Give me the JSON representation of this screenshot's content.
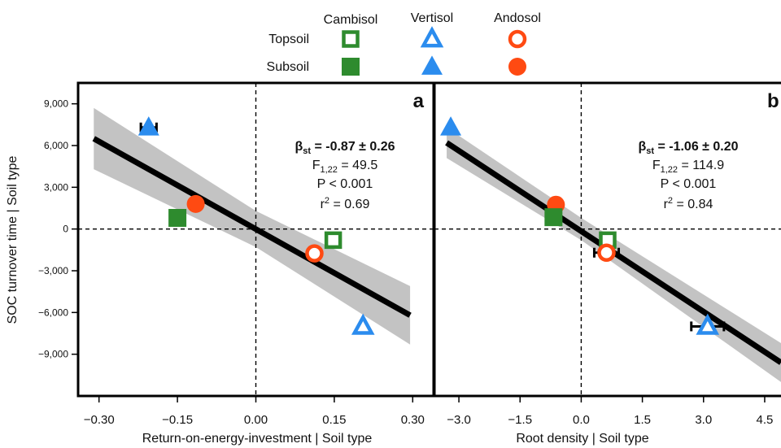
{
  "legend": {
    "columns": [
      {
        "label": "Cambisol",
        "color": "#2e8b2e"
      },
      {
        "label": "Vertisol",
        "color": "#2b8cee"
      },
      {
        "label": "Andosol",
        "color": "#ff4a12"
      }
    ],
    "rows": [
      {
        "label": "Topsoil",
        "fill": "open"
      },
      {
        "label": "Subsoil",
        "fill": "filled"
      }
    ],
    "shapes": {
      "Cambisol": "square",
      "Vertisol": "triangle",
      "Andosol": "circle"
    }
  },
  "chart_data": [
    {
      "type": "scatter",
      "panel_label": "a",
      "xlabel": "Return-on-energy-investment | Soil type",
      "ylabel": "SOC turnover time | Soil type",
      "xlim": [
        -0.34,
        0.34
      ],
      "ylim": [
        -12000,
        10500
      ],
      "xticks": [
        -0.3,
        -0.15,
        0.0,
        0.15,
        0.3
      ],
      "xtick_labels": [
        "−0.30",
        "−0.15",
        "0.00",
        "0.15",
        "0.30"
      ],
      "yticks": [
        9000,
        6000,
        3000,
        0,
        -3000,
        -6000,
        -9000
      ],
      "ytick_labels": [
        "9,000",
        "6,000",
        "3,000",
        "0",
        "−3,000",
        "−6,000",
        "−9,000"
      ],
      "reference_lines": {
        "x": 0,
        "y": 0,
        "style": "dashed"
      },
      "points": [
        {
          "soil": "Vertisol",
          "layer": "Subsoil",
          "x": -0.205,
          "y": 7300,
          "xerr": 0.015
        },
        {
          "soil": "Cambisol",
          "layer": "Subsoil",
          "x": -0.15,
          "y": 800
        },
        {
          "soil": "Andosol",
          "layer": "Subsoil",
          "x": -0.115,
          "y": 1800
        },
        {
          "soil": "Cambisol",
          "layer": "Topsoil",
          "x": 0.148,
          "y": -800
        },
        {
          "soil": "Andosol",
          "layer": "Topsoil",
          "x": 0.112,
          "y": -1750
        },
        {
          "soil": "Vertisol",
          "layer": "Topsoil",
          "x": 0.205,
          "y": -7000
        }
      ],
      "fit": {
        "x": [
          -0.31,
          0.295
        ],
        "y": [
          6500,
          -6200
        ]
      },
      "ci_band": {
        "x": [
          -0.31,
          0.0,
          0.295
        ],
        "lower": [
          4300,
          -1300,
          -8300
        ],
        "upper": [
          8700,
          1300,
          -4100
        ]
      },
      "stats": {
        "beta_prefix": "β",
        "beta_sub": "st",
        "beta_value": " = -0.87 ± 0.26",
        "f_prefix": "F",
        "f_sub": "1,22",
        "f_value": " = 49.5",
        "p_text": "P < 0.001",
        "r2_prefix": "r",
        "r2_sup": "2",
        "r2_value": " = 0.69"
      }
    },
    {
      "type": "scatter",
      "panel_label": "b",
      "xlabel": "Root density | Soil type",
      "ylabel": "",
      "xlim": [
        -3.6,
        4.9
      ],
      "ylim": [
        -12000,
        10500
      ],
      "xticks": [
        -3.0,
        -1.5,
        0.0,
        1.5,
        3.0,
        4.5
      ],
      "xtick_labels": [
        "−3.0",
        "−1.5",
        "0.0",
        "1.5",
        "3.0",
        "4.5"
      ],
      "reference_lines": {
        "x": 0,
        "y": 0,
        "style": "dashed"
      },
      "points": [
        {
          "soil": "Vertisol",
          "layer": "Subsoil",
          "x": -3.2,
          "y": 7300
        },
        {
          "soil": "Andosol",
          "layer": "Subsoil",
          "x": -0.62,
          "y": 1750
        },
        {
          "soil": "Cambisol",
          "layer": "Subsoil",
          "x": -0.68,
          "y": 850
        },
        {
          "soil": "Cambisol",
          "layer": "Topsoil",
          "x": 0.65,
          "y": -800
        },
        {
          "soil": "Andosol",
          "layer": "Topsoil",
          "x": 0.62,
          "y": -1700,
          "xerr": 0.3
        },
        {
          "soil": "Vertisol",
          "layer": "Topsoil",
          "x": 3.1,
          "y": -7000,
          "xerr": 0.4
        }
      ],
      "fit": {
        "x": [
          -3.3,
          4.9
        ],
        "y": [
          6200,
          -9600
        ]
      },
      "ci_band": {
        "x": [
          -3.3,
          0.0,
          4.9
        ],
        "lower": [
          5100,
          -800,
          -11000
        ],
        "upper": [
          7300,
          800,
          -8200
        ]
      },
      "stats": {
        "beta_prefix": "β",
        "beta_sub": "st",
        "beta_value": " = -1.06 ± 0.20",
        "f_prefix": "F",
        "f_sub": "1,22",
        "f_value": " = 114.9",
        "p_text": "P < 0.001",
        "r2_prefix": "r",
        "r2_sup": "2",
        "r2_value": " = 0.84"
      }
    }
  ]
}
